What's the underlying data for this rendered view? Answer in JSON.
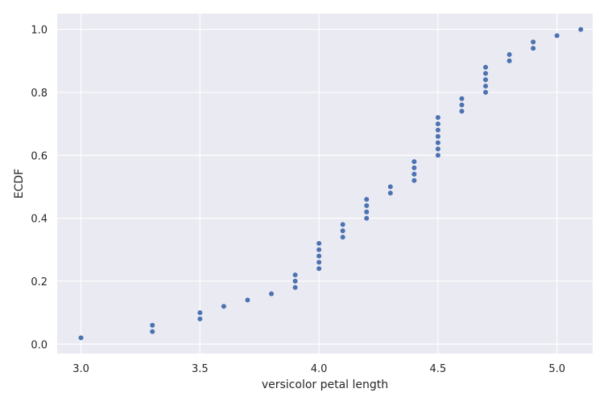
{
  "chart_data": {
    "type": "scatter",
    "title": "",
    "xlabel": "versicolor petal length",
    "ylabel": "ECDF",
    "xlim": [
      2.9,
      5.15
    ],
    "ylim": [
      -0.03,
      1.05
    ],
    "grid": true,
    "xticks": [
      3.0,
      3.5,
      4.0,
      4.5,
      5.0
    ],
    "xtick_labels": [
      "3.0",
      "3.5",
      "4.0",
      "4.5",
      "5.0"
    ],
    "yticks": [
      0.0,
      0.2,
      0.4,
      0.6,
      0.8,
      1.0
    ],
    "ytick_labels": [
      "0.0",
      "0.2",
      "0.4",
      "0.6",
      "0.8",
      "1.0"
    ],
    "colors": {
      "background": "#eaeaf2",
      "grid": "#ffffff",
      "marker": "#4c72b0"
    },
    "series": [
      {
        "x": [
          3.0,
          3.3,
          3.3,
          3.5,
          3.5,
          3.6,
          3.7,
          3.8,
          3.9,
          3.9,
          3.9,
          4.0,
          4.0,
          4.0,
          4.0,
          4.0,
          4.1,
          4.1,
          4.1,
          4.2,
          4.2,
          4.2,
          4.2,
          4.3,
          4.3,
          4.4,
          4.4,
          4.4,
          4.4,
          4.5,
          4.5,
          4.5,
          4.5,
          4.5,
          4.5,
          4.5,
          4.6,
          4.6,
          4.6,
          4.7,
          4.7,
          4.7,
          4.7,
          4.7,
          4.8,
          4.8,
          4.9,
          4.9,
          5.0,
          5.1
        ],
        "y": [
          0.02,
          0.04,
          0.06,
          0.08,
          0.1,
          0.12,
          0.14,
          0.16,
          0.18,
          0.2,
          0.22,
          0.24,
          0.26,
          0.28,
          0.3,
          0.32,
          0.34,
          0.36,
          0.38,
          0.4,
          0.42,
          0.44,
          0.46,
          0.48,
          0.5,
          0.52,
          0.54,
          0.56,
          0.58,
          0.6,
          0.62,
          0.64,
          0.66,
          0.68,
          0.7,
          0.72,
          0.74,
          0.76,
          0.78,
          0.8,
          0.82,
          0.84,
          0.86,
          0.88,
          0.9,
          0.92,
          0.94,
          0.96,
          0.98,
          1.0
        ]
      }
    ]
  }
}
